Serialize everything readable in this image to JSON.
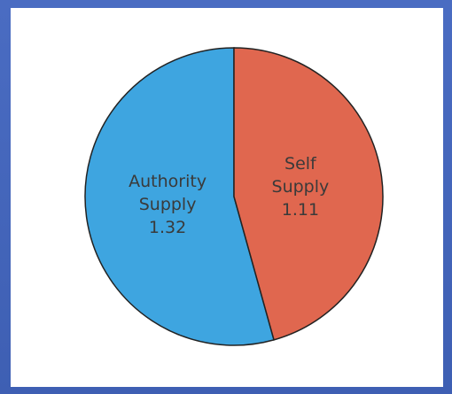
{
  "chart_data": {
    "type": "pie",
    "categories": [
      "Authority Supply",
      "Self Supply"
    ],
    "values": [
      1.32,
      1.11
    ],
    "colors": [
      "#3ea5e0",
      "#e0674f"
    ]
  }
}
